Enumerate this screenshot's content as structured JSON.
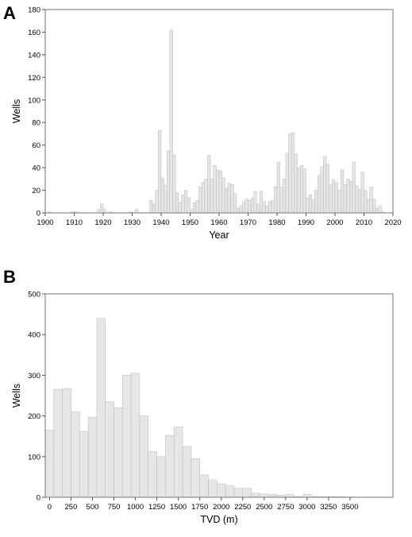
{
  "chart_data": [
    {
      "panel": "A",
      "type": "bar",
      "xlabel": "Year",
      "ylabel": "Wells",
      "xlim": [
        1900,
        2020
      ],
      "ylim": [
        0,
        180
      ],
      "xticks": [
        1900,
        1910,
        1920,
        1930,
        1940,
        1950,
        1960,
        1970,
        1980,
        1990,
        2000,
        2010,
        2020
      ],
      "yticks": [
        0,
        20,
        40,
        60,
        80,
        100,
        120,
        140,
        160,
        180
      ],
      "x": [
        1901,
        1909,
        1910,
        1918,
        1919,
        1920,
        1922,
        1929,
        1931,
        1936,
        1937,
        1938,
        1939,
        1940,
        1941,
        1942,
        1943,
        1944,
        1945,
        1946,
        1947,
        1948,
        1949,
        1950,
        1951,
        1952,
        1953,
        1954,
        1955,
        1956,
        1957,
        1958,
        1959,
        1960,
        1961,
        1962,
        1963,
        1964,
        1965,
        1966,
        1967,
        1968,
        1969,
        1970,
        1971,
        1972,
        1973,
        1974,
        1975,
        1976,
        1977,
        1978,
        1979,
        1980,
        1981,
        1982,
        1983,
        1984,
        1985,
        1986,
        1987,
        1988,
        1989,
        1990,
        1991,
        1992,
        1993,
        1994,
        1995,
        1996,
        1997,
        1998,
        1999,
        2000,
        2001,
        2002,
        2003,
        2004,
        2005,
        2006,
        2007,
        2008,
        2009,
        2010,
        2011,
        2012,
        2013,
        2014,
        2015,
        2016
      ],
      "values": [
        1,
        1,
        1,
        3,
        8,
        3,
        1,
        1,
        3,
        11,
        8,
        20,
        73,
        31,
        24,
        55,
        162,
        51,
        18,
        9,
        16,
        20,
        14,
        3,
        9,
        11,
        23,
        27,
        30,
        51,
        30,
        42,
        38,
        37,
        31,
        22,
        26,
        25,
        17,
        4,
        6,
        10,
        12,
        11,
        13,
        19,
        8,
        19,
        10,
        6,
        10,
        11,
        23,
        45,
        23,
        30,
        53,
        70,
        71,
        52,
        40,
        42,
        39,
        13,
        16,
        12,
        20,
        33,
        41,
        50,
        43,
        25,
        29,
        27,
        20,
        38,
        25,
        30,
        28,
        45,
        24,
        21,
        36,
        20,
        12,
        23,
        12,
        4,
        6,
        1
      ]
    },
    {
      "panel": "B",
      "type": "bar",
      "xlabel": "TVD (m)",
      "ylabel": "Wells",
      "xlim": [
        -50,
        4000
      ],
      "ylim": [
        0,
        500
      ],
      "bin_width": 100,
      "xticks": [
        0,
        250,
        500,
        750,
        1000,
        1250,
        1500,
        1750,
        2000,
        2250,
        2500,
        2750,
        3000,
        3250,
        3500
      ],
      "yticks": [
        0,
        100,
        200,
        300,
        400,
        500
      ],
      "x": [
        0,
        100,
        200,
        300,
        400,
        500,
        600,
        700,
        800,
        900,
        1000,
        1100,
        1200,
        1300,
        1400,
        1500,
        1600,
        1700,
        1800,
        1900,
        2000,
        2100,
        2200,
        2300,
        2400,
        2500,
        2600,
        2700,
        2800,
        2900,
        3000,
        3100,
        3200,
        3300,
        3400,
        3500
      ],
      "values": [
        165,
        265,
        267,
        210,
        162,
        197,
        440,
        235,
        220,
        300,
        305,
        200,
        113,
        100,
        152,
        173,
        125,
        95,
        55,
        43,
        33,
        28,
        22,
        22,
        10,
        8,
        7,
        5,
        7,
        2,
        7,
        2,
        2,
        2,
        2,
        1
      ]
    }
  ]
}
